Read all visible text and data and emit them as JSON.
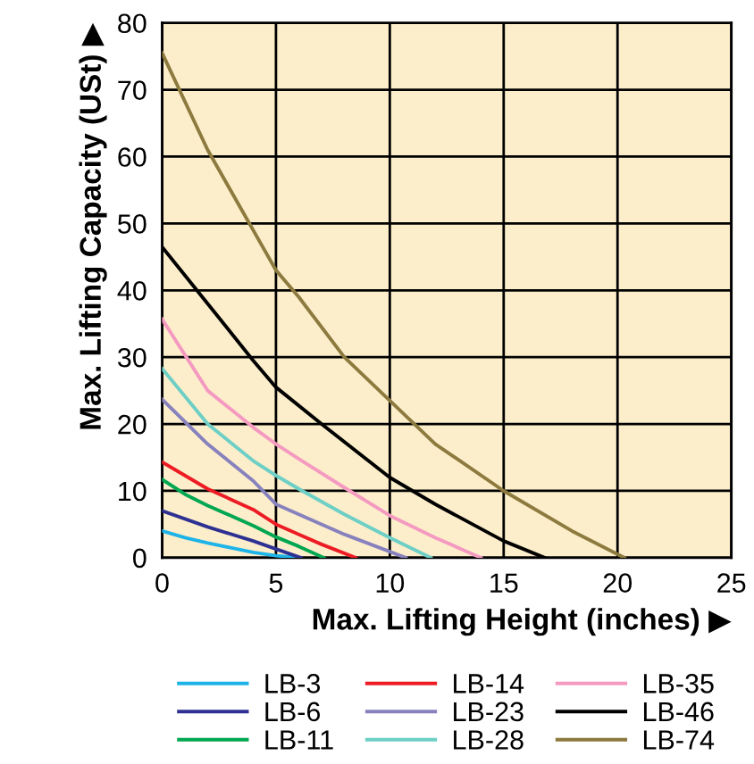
{
  "chart_data": {
    "type": "line",
    "xlabel": "Max. Lifting Height (inches) ▶",
    "ylabel": "Max. Lifting Capacity (USt) ▶",
    "xlim": [
      0,
      25
    ],
    "ylim": [
      0,
      80
    ],
    "xticks": [
      0,
      5,
      10,
      15,
      20,
      25
    ],
    "yticks": [
      0,
      10,
      20,
      30,
      40,
      50,
      60,
      70,
      80
    ],
    "grid": true,
    "legend": "bottom",
    "marker": "none",
    "line_style": "solid",
    "series": [
      {
        "name": "LB-3",
        "color": "#1eb4e8",
        "x": [
          0,
          1,
          2,
          3,
          4,
          5,
          6
        ],
        "values": [
          4,
          3,
          2.2,
          1.5,
          0.8,
          0.3,
          0
        ]
      },
      {
        "name": "LB-6",
        "color": "#2e3192",
        "x": [
          0,
          2,
          4,
          5,
          6.1
        ],
        "values": [
          7,
          4.6,
          2.5,
          1.3,
          0
        ]
      },
      {
        "name": "LB-11",
        "color": "#00a651",
        "x": [
          0,
          1,
          2,
          4,
          5,
          6,
          7.1
        ],
        "values": [
          11.7,
          9.5,
          7.8,
          4.8,
          3.1,
          1.7,
          0
        ]
      },
      {
        "name": "LB-14",
        "color": "#ed1c24",
        "x": [
          0,
          2,
          4,
          5,
          6,
          7,
          8.5
        ],
        "values": [
          14.3,
          10.3,
          7.2,
          5,
          3.5,
          2,
          0
        ]
      },
      {
        "name": "LB-23",
        "color": "#8781bd",
        "x": [
          0,
          2,
          4,
          5,
          6,
          8,
          10.7
        ],
        "values": [
          23.7,
          17,
          11.5,
          8,
          6.5,
          3.5,
          0
        ]
      },
      {
        "name": "LB-28",
        "color": "#6dcfc6",
        "x": [
          0,
          2,
          4,
          5,
          6,
          8,
          10,
          11.8
        ],
        "values": [
          28.3,
          20,
          14.5,
          12.3,
          10.3,
          6.5,
          3,
          0
        ]
      },
      {
        "name": "LB-35",
        "color": "#f49ac1",
        "x": [
          0,
          2,
          4,
          5,
          6,
          8,
          10,
          12,
          14
        ],
        "values": [
          35.7,
          25,
          19.5,
          17,
          14.8,
          10.5,
          6.3,
          3,
          0
        ]
      },
      {
        "name": "LB-46",
        "color": "#000000",
        "x": [
          0,
          2,
          4,
          5,
          7,
          10,
          12,
          15,
          16.8
        ],
        "values": [
          46.5,
          38,
          29.5,
          25.5,
          20,
          12,
          8,
          2.5,
          0
        ]
      },
      {
        "name": "LB-74",
        "color": "#8c7a3e",
        "x": [
          0,
          2,
          4,
          5,
          6,
          8,
          10,
          12,
          15,
          18,
          20.3
        ],
        "values": [
          75.5,
          61,
          49,
          43,
          39,
          30,
          23.5,
          17,
          10,
          4,
          0
        ]
      }
    ]
  }
}
